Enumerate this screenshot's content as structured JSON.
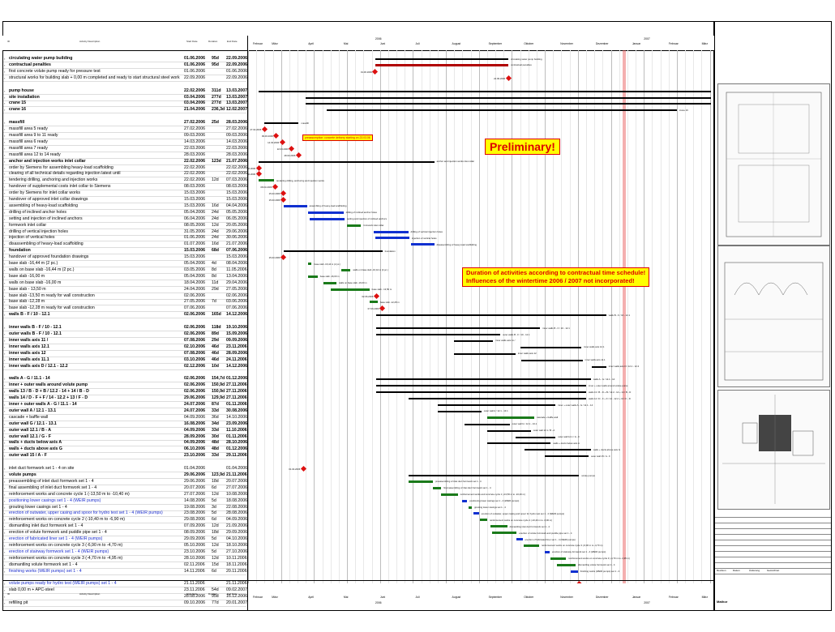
{
  "header": {
    "column_labels": [
      "ID",
      "Activity Description",
      "Start Date",
      "Duration",
      "End Date"
    ],
    "year_top": [
      "2006",
      "2007"
    ],
    "months": [
      "Februar",
      "März",
      "April",
      "Mai",
      "Juni",
      "Juli",
      "August",
      "September",
      "Oktober",
      "November",
      "Dezember",
      "Januar",
      "Februar",
      "März"
    ],
    "year_bottom": [
      "2006",
      "2007"
    ]
  },
  "notes": {
    "preliminary": "Preliminary!",
    "duration_note_line1": "Duration of activities according to contractual time schedule!",
    "duration_note_line2": "Influences of the wintertime 2006 / 2007 not incorporated!",
    "concrete_note": "preassumption: concrete delivery starting on 23.03.06"
  },
  "activities": [
    {
      "name": "circulating water pump building",
      "start": "01.06.2006",
      "dur": "95d",
      "end": "22.09.2006",
      "bold": true
    },
    {
      "name": "contractual penalties",
      "start": "01.06.2006",
      "dur": "95d",
      "end": "22.09.2006",
      "bold": true
    },
    {
      "name": "first concrete volute pump ready for pressure test",
      "start": "01.06.2006",
      "dur": "",
      "end": "01.06.2006"
    },
    {
      "name": "structural works for building slab + 0,00 m completed and ready to start structural steel work",
      "start": "22.09.2006",
      "dur": "",
      "end": "22.09.2006"
    },
    {
      "name": "pump house",
      "start": "22.02.2006",
      "dur": "311d",
      "end": "13.03.2007",
      "bold": true
    },
    {
      "name": "site installation",
      "start": "03.04.2006",
      "dur": "277d",
      "end": "13.03.2007",
      "bold": true
    },
    {
      "name": "crane 15",
      "start": "03.04.2006",
      "dur": "277d",
      "end": "13.03.2007",
      "bold": true
    },
    {
      "name": "crane 16",
      "start": "21.04.2006",
      "dur": "236,3d",
      "end": "12.02.2007",
      "bold": true
    },
    {
      "name": "massfill",
      "start": "27.02.2006",
      "dur": "25d",
      "end": "28.03.2006",
      "bold": true
    },
    {
      "name": "massfill area 5 ready",
      "start": "27.02.2006",
      "dur": "",
      "end": "27.02.2006"
    },
    {
      "name": "massfill area 9 to 11 ready",
      "start": "09.03.2006",
      "dur": "",
      "end": "09.03.2006"
    },
    {
      "name": "massfill area 6 ready",
      "start": "14.03.2006",
      "dur": "",
      "end": "14.03.2006"
    },
    {
      "name": "massfill area 7 ready",
      "start": "22.03.2006",
      "dur": "",
      "end": "22.03.2006"
    },
    {
      "name": "massfill area 12 to 14 ready",
      "start": "28.03.2006",
      "dur": "",
      "end": "28.03.2006"
    },
    {
      "name": "anchor and injection works inlet collar",
      "start": "22.02.2006",
      "dur": "123d",
      "end": "21.07.2006",
      "bold": true
    },
    {
      "name": "order by Siemens for assembling heavy-load scaffolding",
      "start": "22.02.2006",
      "dur": "",
      "end": "22.02.2006"
    },
    {
      "name": "clearing of all technical details regarding injection latest until",
      "start": "22.02.2006",
      "dur": "",
      "end": "22.02.2006"
    },
    {
      "name": "tendering drilling, anchoring and injection works",
      "start": "22.02.2006",
      "dur": "12d",
      "end": "07.03.2006"
    },
    {
      "name": "handover of supplemental costs inlet collar to Siemens",
      "start": "08.03.2006",
      "dur": "",
      "end": "08.03.2006"
    },
    {
      "name": "order by Siemens for inlet collar works",
      "start": "15.03.2006",
      "dur": "",
      "end": "15.03.2006"
    },
    {
      "name": "handover of approved inlet collar drawings",
      "start": "15.03.2006",
      "dur": "",
      "end": "15.03.2006"
    },
    {
      "name": "assembling of heavy-load scaffolding",
      "start": "15.03.2006",
      "dur": "16d",
      "end": "04.04.2006"
    },
    {
      "name": "drilling of inclined anchor holes",
      "start": "05.04.2006",
      "dur": "24d",
      "end": "05.05.2006"
    },
    {
      "name": "setting and injection of inclined anchors",
      "start": "06.04.2006",
      "dur": "24d",
      "end": "06.05.2006"
    },
    {
      "name": "formwork inlet collar",
      "start": "08.05.2006",
      "dur": "12d",
      "end": "20.05.2006"
    },
    {
      "name": "drilling of vertical injection holes",
      "start": "31.05.2006",
      "dur": "24d",
      "end": "29.06.2006"
    },
    {
      "name": "injection of vertical holes",
      "start": "01.06.2006",
      "dur": "24d",
      "end": "30.06.2006"
    },
    {
      "name": "disassembling of heavy-load scaffolding",
      "start": "01.07.2006",
      "dur": "16d",
      "end": "21.07.2006"
    },
    {
      "name": "foundation",
      "start": "15.03.2006",
      "dur": "68d",
      "end": "07.06.2006",
      "bold": true
    },
    {
      "name": "handover of approved foundation drawings",
      "start": "15.03.2006",
      "dur": "",
      "end": "15.03.2006"
    },
    {
      "name": "base slab -16,44 m (2 pc.)",
      "start": "05.04.2006",
      "dur": "4d",
      "end": "08.04.2006"
    },
    {
      "name": "walls on base slab -16,44 m (2 pc.)",
      "start": "03.05.2006",
      "dur": "8d",
      "end": "11.05.2006"
    },
    {
      "name": "base slab -16,00 m",
      "start": "05.04.2006",
      "dur": "8d",
      "end": "13.04.2006"
    },
    {
      "name": "walls on base slab -16,00 m",
      "start": "18.04.2006",
      "dur": "11d",
      "end": "29.04.2006"
    },
    {
      "name": "base slab - 13,50 m",
      "start": "24.04.2006",
      "dur": "29d",
      "end": "27.05.2006"
    },
    {
      "name": "base slab -13,50 m ready for wall construction",
      "start": "02.06.2006",
      "dur": "",
      "end": "02.06.2006"
    },
    {
      "name": "base slab -12,28 m",
      "start": "27.05.2006",
      "dur": "7d",
      "end": "03.06.2006"
    },
    {
      "name": "base slab -12,28 m ready for wall construction",
      "start": "07.06.2006",
      "dur": "",
      "end": "07.06.2006"
    },
    {
      "name": "walls B - F / 10 - 12.1",
      "start": "02.06.2006",
      "dur": "165d",
      "end": "14.12.2006",
      "bold": true
    },
    {
      "name": "inner walls B - F / 10 - 12.1",
      "start": "02.06.2006",
      "dur": "118d",
      "end": "19.10.2006",
      "bold": true
    },
    {
      "name": "outer walls B - F / 10 - 12.1",
      "start": "02.06.2006",
      "dur": "89d",
      "end": "15.09.2006",
      "bold": true
    },
    {
      "name": "inner walls axis 11 /",
      "start": "07.08.2006",
      "dur": "29d",
      "end": "09.09.2006",
      "bold": true
    },
    {
      "name": "inner walls axis 12.1",
      "start": "02.10.2006",
      "dur": "46d",
      "end": "23.11.2006",
      "bold": true
    },
    {
      "name": "inner walls axis 12",
      "start": "07.08.2006",
      "dur": "46d",
      "end": "28.09.2006",
      "bold": true
    },
    {
      "name": "inner walls axis 11.1",
      "start": "03.10.2006",
      "dur": "46d",
      "end": "24.11.2006",
      "bold": true
    },
    {
      "name": "inner walls axis D / 12.1 - 12.2",
      "start": "02.12.2006",
      "dur": "10d",
      "end": "14.12.2006",
      "bold": true
    },
    {
      "name": "walls A - G / 11.1 - 14",
      "start": "02.06.2006",
      "dur": "154,7d",
      "end": "01.12.2006",
      "bold": true
    },
    {
      "name": "inner + outer walls around volute pump",
      "start": "02.06.2006",
      "dur": "150,9d",
      "end": "27.11.2006",
      "bold": true
    },
    {
      "name": "walls 13 / B - D + B / 12.2 - 14 + 14 / B - D",
      "start": "02.06.2006",
      "dur": "150,9d",
      "end": "27.11.2006",
      "bold": true
    },
    {
      "name": "walls 14 / D - F + F / 14 - 12.2 + 13 / F - D",
      "start": "29.06.2006",
      "dur": "129,9d",
      "end": "27.11.2006",
      "bold": true
    },
    {
      "name": "inner + outer walls A - G / 11.1 - 14",
      "start": "24.07.2006",
      "dur": "87d",
      "end": "01.11.2006",
      "bold": true
    },
    {
      "name": "outer wall A / 12.1 - 13.1",
      "start": "24.07.2006",
      "dur": "33d",
      "end": "30.08.2006",
      "bold": true
    },
    {
      "name": "cascade + baffle wall",
      "start": "04.09.2006",
      "dur": "36d",
      "end": "14.10.2006"
    },
    {
      "name": "outer wall G / 12.1 - 13.1",
      "start": "16.08.2006",
      "dur": "34d",
      "end": "23.09.2006",
      "bold": true
    },
    {
      "name": "outer wall 12.1 / B - A",
      "start": "04.09.2006",
      "dur": "33d",
      "end": "11.10.2006",
      "bold": true
    },
    {
      "name": "outer wall 12.1 / G - F",
      "start": "28.09.2006",
      "dur": "30d",
      "end": "01.11.2006",
      "bold": true
    },
    {
      "name": "walls + ducts below axis A",
      "start": "04.09.2006",
      "dur": "48d",
      "end": "28.10.2006",
      "bold": true
    },
    {
      "name": "walls + ducts above axis G",
      "start": "06.10.2006",
      "dur": "48d",
      "end": "01.12.2006",
      "bold": true
    },
    {
      "name": "outer wall 15 / A - F",
      "start": "23.10.2006",
      "dur": "33d",
      "end": "29.11.2006",
      "bold": true
    },
    {
      "name": "inlet duct formwork set 1 - 4 on site",
      "start": "01.04.2006",
      "dur": "",
      "end": "01.04.2006"
    },
    {
      "name": "volute pumps",
      "start": "29.06.2006",
      "dur": "123,9d",
      "end": "21.11.2006",
      "bold": true
    },
    {
      "name": "preassembling of inlet duct formwork set 1 - 4",
      "start": "29.06.2006",
      "dur": "18d",
      "end": "20.07.2006"
    },
    {
      "name": "final assembling of inlet duct formwork set 1 - 4",
      "start": "20.07.2006",
      "dur": "6d",
      "end": "27.07.2006"
    },
    {
      "name": "reinforcement works and concrete cycle 1 (-13,50 m to -10,40 m)",
      "start": "27.07.2006",
      "dur": "12d",
      "end": "10.08.2006"
    },
    {
      "name": "positioning lower casings set 1 - 4 (WEIR pumps)",
      "start": "14.08.2006",
      "dur": "5d",
      "end": "18.08.2006",
      "blue": true
    },
    {
      "name": "grouting lower casings set 1 - 4",
      "start": "19.08.2006",
      "dur": "3d",
      "end": "22.08.2006"
    },
    {
      "name": "erection of outwater, upper casing and spoor for hydro test set 1 - 4 (WEIR pumps)",
      "start": "23.08.2006",
      "dur": "5d",
      "end": "28.08.2006",
      "blue": true
    },
    {
      "name": "reinforcement works on concrete cycle 2 (-10,40 m to -6,90 m)",
      "start": "29.08.2006",
      "dur": "6d",
      "end": "04.09.2006"
    },
    {
      "name": "dismantling inlet duct formwork set 1 - 4",
      "start": "07.09.2006",
      "dur": "12d",
      "end": "21.09.2006"
    },
    {
      "name": "erection of volute formwork and puddle pipe set 1 - 4",
      "start": "08.09.2006",
      "dur": "18d",
      "end": "29.09.2006"
    },
    {
      "name": "erection of fabricated liner set 1 - 4 (WEIR pumps)",
      "start": "29.09.2006",
      "dur": "5d",
      "end": "04.10.2006",
      "blue": true
    },
    {
      "name": "reinforcement works on concrete cycle 3 (-6,90 m to -4,70 m)",
      "start": "05.10.2006",
      "dur": "12d",
      "end": "18.10.2006"
    },
    {
      "name": "erection of stairway formwork set 1 - 4 (WEIR pumps)",
      "start": "23.10.2006",
      "dur": "5d",
      "end": "27.10.2006",
      "blue": true
    },
    {
      "name": "reinforcement works on concrete cycle 3 (-4,70 m to -4,95 m)",
      "start": "28.10.2006",
      "dur": "12d",
      "end": "10.11.2006"
    },
    {
      "name": "dismantling volute formwork set 1 - 4",
      "start": "02.11.2006",
      "dur": "15d",
      "end": "18.11.2006"
    },
    {
      "name": "finishing works (WEIR pumps) set 1 - 4",
      "start": "14.11.2006",
      "dur": "6d",
      "end": "20.11.2006",
      "blue": true
    },
    {
      "name": "volute pumps ready for hydro test (WEIR pumps) set 1 - 4",
      "start": "21.11.2006",
      "dur": "",
      "end": "21.11.2006",
      "blue": true
    },
    {
      "name": "slab 0,00 m + APC-steel",
      "start": "23.11.2006",
      "dur": "54d",
      "end": "09.02.2007"
    },
    {
      "name": "",
      "start": "28.08.2006",
      "dur": "95d",
      "end": "16.12.2006"
    },
    {
      "name": "refilling pit",
      "start": "09.10.2006",
      "dur": "77d",
      "end": "20.01.2007"
    }
  ],
  "colors": {
    "normal_bar": "#1a7a1a",
    "critical_bar": "#1030d0",
    "summary_bar": "#000000",
    "penalty_bar": "#b00000",
    "steel_bar": "#1a8a9a",
    "refill_bar": "#b8860b",
    "note_bg": "#ffff00",
    "note_text": "#dd0000"
  },
  "title_block": {
    "table_headers": [
      "Revision",
      "Datum",
      "Änderung",
      "Gezeichnet"
    ],
    "footer_label": "Mathor"
  }
}
